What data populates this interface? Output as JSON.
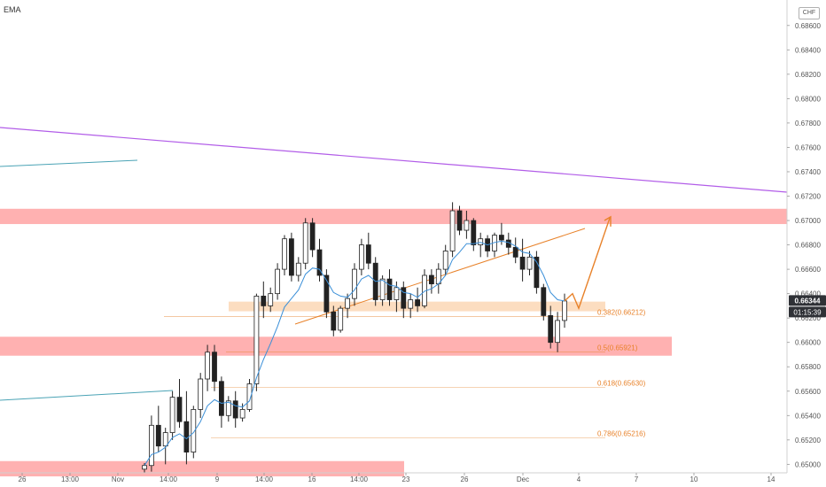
{
  "legend": {
    "label": "EMA"
  },
  "currency": "CHF",
  "colors": {
    "up": "#ffffff",
    "down": "#222222",
    "candle_border": "#222222",
    "ema": "#3a8fd8",
    "trend_purple": "#b25de8",
    "zone_red": "#ff9e9e",
    "zone_orange": "#fbd4b0",
    "fib": "#e8822a",
    "cyan_line": "#4aa3b5",
    "price_badge": "#2f3136",
    "timer_badge": "#2f3136"
  },
  "price_axis": {
    "ticks": [
      "0.65000",
      "0.65200",
      "0.65400",
      "0.65600",
      "0.65800",
      "0.66000",
      "0.66200",
      "0.66400",
      "0.66600",
      "0.66800",
      "0.67000",
      "0.67200",
      "0.67400",
      "0.67600",
      "0.67800",
      "0.68000",
      "0.68200",
      "0.68400",
      "0.68600"
    ]
  },
  "time_axis": {
    "labels": [
      "26",
      "13:00",
      "Nov",
      "14:00",
      "9",
      "14:00",
      "16",
      "14:00",
      "23",
      "26",
      "Dec",
      "4",
      "7",
      "10",
      "14"
    ]
  },
  "current": {
    "price": "0.66344",
    "timer": "01:15:39"
  },
  "fib_levels": [
    {
      "label": "0.382(0.66212)",
      "price": 0.66212
    },
    {
      "label": "0.5(0.65921)",
      "price": 0.65921
    },
    {
      "label": "0.618(0.65630)",
      "price": 0.6563
    },
    {
      "label": "0.786(0.65216)",
      "price": 0.65216
    }
  ],
  "chart_data": {
    "type": "candlestick",
    "symbol_quote": "CHF",
    "ylim": [
      0.6493,
      0.6878
    ],
    "ema_label": "EMA",
    "x_labels": [
      "26",
      "13:00",
      "Nov",
      "14:00",
      "9",
      "14:00",
      "16",
      "14:00",
      "23",
      "26",
      "Dec",
      "4",
      "7",
      "10",
      "14"
    ],
    "candles": [
      [
        0.6496,
        0.6501,
        0.6493,
        0.6499
      ],
      [
        0.6499,
        0.654,
        0.6494,
        0.6532
      ],
      [
        0.6532,
        0.6548,
        0.651,
        0.6515
      ],
      [
        0.6515,
        0.653,
        0.65,
        0.6526
      ],
      [
        0.6526,
        0.656,
        0.652,
        0.6555
      ],
      [
        0.6555,
        0.657,
        0.653,
        0.6535
      ],
      [
        0.6535,
        0.656,
        0.65,
        0.651
      ],
      [
        0.651,
        0.6548,
        0.6505,
        0.6545
      ],
      [
        0.6545,
        0.6575,
        0.6538,
        0.657
      ],
      [
        0.657,
        0.6598,
        0.656,
        0.6592
      ],
      [
        0.6592,
        0.6598,
        0.656,
        0.6568
      ],
      [
        0.6568,
        0.6572,
        0.653,
        0.654
      ],
      [
        0.654,
        0.6556,
        0.6535,
        0.6552
      ],
      [
        0.6552,
        0.656,
        0.653,
        0.6538
      ],
      [
        0.6538,
        0.655,
        0.6535,
        0.6545
      ],
      [
        0.6545,
        0.657,
        0.6543,
        0.6566
      ],
      [
        0.6566,
        0.664,
        0.656,
        0.6638
      ],
      [
        0.6638,
        0.665,
        0.662,
        0.663
      ],
      [
        0.663,
        0.6645,
        0.6625,
        0.664
      ],
      [
        0.664,
        0.6665,
        0.6635,
        0.666
      ],
      [
        0.666,
        0.6688,
        0.6655,
        0.6685
      ],
      [
        0.6685,
        0.669,
        0.665,
        0.6655
      ],
      [
        0.6655,
        0.667,
        0.665,
        0.6665
      ],
      [
        0.6665,
        0.6702,
        0.666,
        0.6698
      ],
      [
        0.6698,
        0.6702,
        0.667,
        0.6676
      ],
      [
        0.6676,
        0.6685,
        0.665,
        0.6655
      ],
      [
        0.6655,
        0.666,
        0.662,
        0.6625
      ],
      [
        0.6625,
        0.663,
        0.6605,
        0.661
      ],
      [
        0.661,
        0.663,
        0.6608,
        0.6628
      ],
      [
        0.6628,
        0.664,
        0.662,
        0.6636
      ],
      [
        0.6636,
        0.6665,
        0.663,
        0.666
      ],
      [
        0.666,
        0.6685,
        0.6655,
        0.668
      ],
      [
        0.668,
        0.669,
        0.666,
        0.6665
      ],
      [
        0.6665,
        0.667,
        0.663,
        0.6635
      ],
      [
        0.6635,
        0.6655,
        0.663,
        0.6652
      ],
      [
        0.6652,
        0.666,
        0.663,
        0.6635
      ],
      [
        0.6635,
        0.665,
        0.6625,
        0.6645
      ],
      [
        0.6645,
        0.665,
        0.662,
        0.6628
      ],
      [
        0.6628,
        0.664,
        0.662,
        0.6635
      ],
      [
        0.6635,
        0.6645,
        0.6625,
        0.663
      ],
      [
        0.663,
        0.666,
        0.6628,
        0.6655
      ],
      [
        0.6655,
        0.666,
        0.664,
        0.6648
      ],
      [
        0.6648,
        0.6665,
        0.664,
        0.666
      ],
      [
        0.666,
        0.668,
        0.6655,
        0.6675
      ],
      [
        0.6675,
        0.6715,
        0.667,
        0.6708
      ],
      [
        0.6708,
        0.6712,
        0.6688,
        0.6692
      ],
      [
        0.6692,
        0.6708,
        0.6685,
        0.67
      ],
      [
        0.67,
        0.6702,
        0.6675,
        0.668
      ],
      [
        0.668,
        0.669,
        0.667,
        0.6685
      ],
      [
        0.6685,
        0.6688,
        0.667,
        0.6675
      ],
      [
        0.6675,
        0.669,
        0.667,
        0.6688
      ],
      [
        0.6688,
        0.6698,
        0.668,
        0.6684
      ],
      [
        0.6684,
        0.669,
        0.6672,
        0.6678
      ],
      [
        0.6678,
        0.6686,
        0.6665,
        0.667
      ],
      [
        0.667,
        0.6685,
        0.665,
        0.666
      ],
      [
        0.666,
        0.6675,
        0.6655,
        0.667
      ],
      [
        0.667,
        0.6675,
        0.664,
        0.6645
      ],
      [
        0.6645,
        0.6648,
        0.6618,
        0.6622
      ],
      [
        0.6622,
        0.663,
        0.6595,
        0.66
      ],
      [
        0.66,
        0.6625,
        0.6592,
        0.6618
      ],
      [
        0.6618,
        0.664,
        0.6612,
        0.6634
      ]
    ],
    "ema": [
      0.6499,
      0.6508,
      0.651,
      0.6514,
      0.6522,
      0.6525,
      0.6521,
      0.6526,
      0.6535,
      0.6548,
      0.6553,
      0.655,
      0.6551,
      0.6548,
      0.6547,
      0.6552,
      0.6571,
      0.6586,
      0.6599,
      0.6613,
      0.6629,
      0.6636,
      0.6643,
      0.6656,
      0.6661,
      0.666,
      0.6651,
      0.6641,
      0.6638,
      0.6637,
      0.6643,
      0.6652,
      0.6655,
      0.665,
      0.6651,
      0.6647,
      0.6646,
      0.6641,
      0.664,
      0.6637,
      0.6642,
      0.6644,
      0.6648,
      0.6655,
      0.6668,
      0.6674,
      0.6681,
      0.6681,
      0.6682,
      0.668,
      0.6682,
      0.6683,
      0.6682,
      0.6679,
      0.6674,
      0.6673,
      0.6666,
      0.6655,
      0.6641,
      0.6635,
      0.6634
    ],
    "zones": [
      {
        "color": "red",
        "y_top": 0.6706,
        "y_bottom": 0.67,
        "x_end": "chart-edge"
      },
      {
        "color": "red",
        "y_top": 0.6601,
        "y_bottom": 0.6592,
        "x_end": "Dec+9"
      },
      {
        "color": "red",
        "y_top": 0.6499,
        "y_bottom": 0.6493,
        "x_end": "23"
      },
      {
        "color": "orange",
        "y_top": 0.6632,
        "y_bottom": 0.6627,
        "x_end": "4"
      }
    ],
    "fibonacci": [
      {
        "level": "0.382",
        "price": 0.66212
      },
      {
        "level": "0.5",
        "price": 0.65921
      },
      {
        "level": "0.618",
        "price": 0.6563
      },
      {
        "level": "0.786",
        "price": 0.65216
      }
    ],
    "trendlines": [
      "purple descending resistance",
      "orange ascending support",
      "cyan lines at left"
    ],
    "projection": "orange arrow dip to 0.6634 then rally to 0.6700",
    "last_price": 0.66344
  }
}
